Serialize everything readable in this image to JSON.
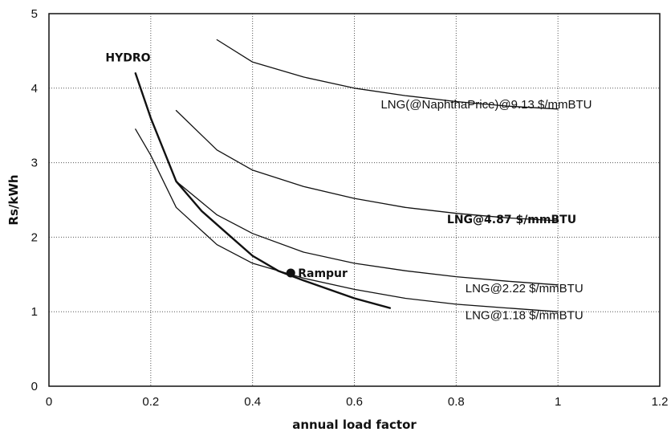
{
  "chart_data": {
    "type": "line",
    "xlabel": "annual load factor",
    "ylabel": "Rs/kWh",
    "xlim": [
      0,
      1.2
    ],
    "ylim": [
      0,
      5
    ],
    "x_ticks": [
      "0",
      "0.2",
      "0.4",
      "0.6",
      "0.8",
      "1",
      "1.2"
    ],
    "y_ticks": [
      "0",
      "1",
      "2",
      "3",
      "4",
      "5"
    ],
    "grid": true,
    "series": [
      {
        "name": "HYDRO",
        "bold": true,
        "x": [
          0.17,
          0.2,
          0.25,
          0.3,
          0.35,
          0.4,
          0.45,
          0.5,
          0.55,
          0.6,
          0.67
        ],
        "y": [
          4.2,
          3.6,
          2.75,
          2.35,
          2.05,
          1.75,
          1.55,
          1.42,
          1.3,
          1.18,
          1.05
        ]
      },
      {
        "name": "LNG(@NaphthaPrice)@9.13 $/mmBTU",
        "bold": false,
        "x": [
          0.33,
          0.4,
          0.5,
          0.6,
          0.7,
          0.8,
          0.9,
          1.0
        ],
        "y": [
          4.65,
          4.35,
          4.15,
          4.0,
          3.9,
          3.82,
          3.76,
          3.72
        ]
      },
      {
        "name": "LNG@4.87 $/mmBTU",
        "bold": false,
        "x": [
          0.25,
          0.33,
          0.4,
          0.5,
          0.6,
          0.7,
          0.8,
          0.9,
          1.0
        ],
        "y": [
          3.7,
          3.17,
          2.9,
          2.68,
          2.52,
          2.4,
          2.32,
          2.26,
          2.22
        ]
      },
      {
        "name": "LNG@2.22 $/mmBTU",
        "bold": false,
        "x": [
          0.25,
          0.33,
          0.4,
          0.5,
          0.6,
          0.7,
          0.8,
          0.9,
          1.0
        ],
        "y": [
          2.75,
          2.3,
          2.05,
          1.8,
          1.65,
          1.55,
          1.47,
          1.41,
          1.36
        ]
      },
      {
        "name": "LNG@1.18 $/mmBTU",
        "bold": false,
        "x": [
          0.17,
          0.2,
          0.25,
          0.33,
          0.4,
          0.5,
          0.6,
          0.7,
          0.8,
          0.9,
          1.0
        ],
        "y": [
          3.45,
          3.1,
          2.4,
          1.9,
          1.65,
          1.45,
          1.3,
          1.18,
          1.1,
          1.05,
          1.0
        ]
      }
    ],
    "labels": [
      {
        "text": "HYDRO",
        "x": 0.111,
        "y": 4.36,
        "style": "bold"
      },
      {
        "text": "LNG(@NaphthaPrice)@9.13 $/mmBTU",
        "x": 0.652,
        "y": 3.73,
        "style": "normal"
      },
      {
        "text": "LNG@4.87 $/mmBTU",
        "x": 0.782,
        "y": 2.19,
        "style": "bold"
      },
      {
        "text": "LNG@2.22 $/mmBTU",
        "x": 0.818,
        "y": 1.26,
        "style": "normal"
      },
      {
        "text": "LNG@1.18 $/mmBTU",
        "x": 0.818,
        "y": 0.9,
        "style": "normal"
      }
    ],
    "points": [
      {
        "name": "Rampur",
        "x": 0.475,
        "y": 1.52
      }
    ]
  }
}
